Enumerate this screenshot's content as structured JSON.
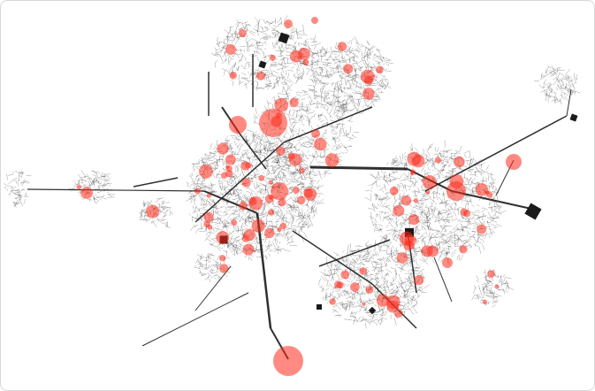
{
  "colors": {
    "background": "#ffffff",
    "edge": "#1a1a1a",
    "node_highlight": "#ff2a1a",
    "border": "#d8d8d8"
  },
  "graph": {
    "type": "network",
    "node_shape_hub": "square",
    "node_shape_highlight": "circle"
  }
}
